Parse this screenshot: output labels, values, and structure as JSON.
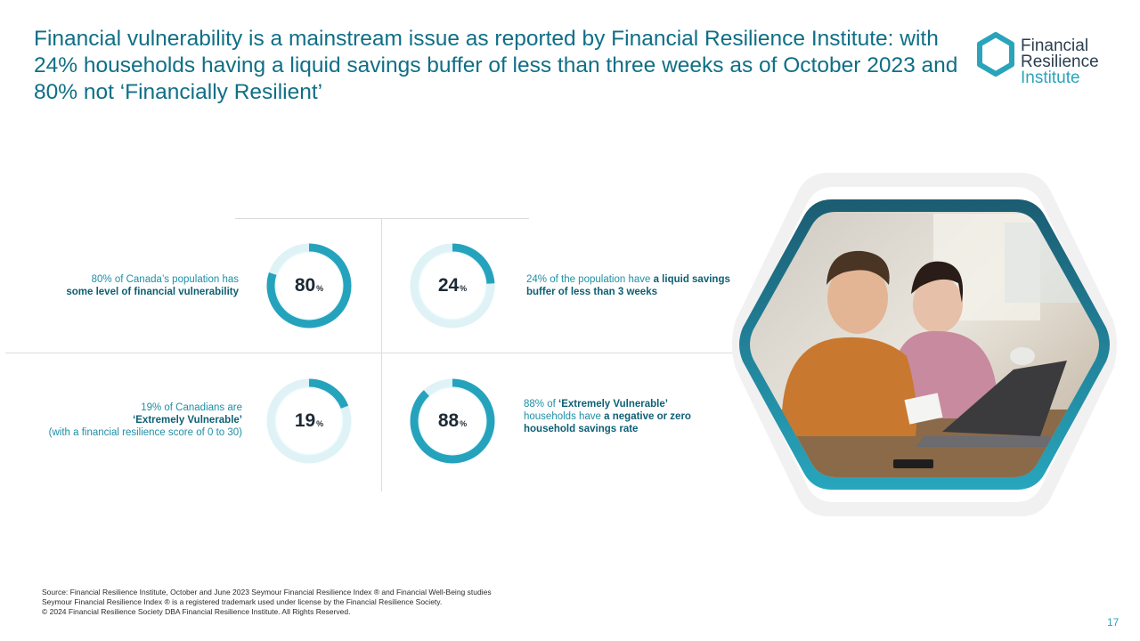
{
  "title": "Financial vulnerability is a mainstream issue as reported by Financial Resilience Institute: with 24% households having a liquid savings buffer of less than three weeks as of October 2023 and 80% not ‘Financially Resilient’",
  "logo": {
    "line1": "Financial",
    "line2": "Resilience",
    "line3": "Institute",
    "icon": "hexagon-ring-icon",
    "colors": {
      "ring": "#2aa4bb",
      "text_dark": "#2b3e4f",
      "text_accent": "#2aa4bb"
    }
  },
  "stats": [
    {
      "value": "80",
      "unit": "%",
      "fraction": 0.8,
      "desc_plain": "80% of Canada’s population has",
      "desc_bold": "some level of financial vulnerability"
    },
    {
      "value": "24",
      "unit": "%",
      "fraction": 0.24,
      "desc_plain": "24% of the population have",
      "desc_bold": "a liquid savings buffer of less than 3 weeks"
    },
    {
      "value": "19",
      "unit": "%",
      "fraction": 0.19,
      "desc_line1": "19% of Canadians are",
      "desc_bold": "‘Extremely Vulnerable’",
      "desc_line3": "(with a financial resilience score of 0 to 30)"
    },
    {
      "value": "88",
      "unit": "%",
      "fraction": 0.88,
      "desc_plain": "88% of",
      "desc_bold1": "‘Extremely Vulnerable’",
      "desc_mid": "households have",
      "desc_bold2": "a negative or zero household savings rate"
    }
  ],
  "photo": {
    "subject": "couple reviewing finances at laptop"
  },
  "footer": {
    "line1": "Source: Financial Resilience Institute, October and June 2023 Seymour Financial Resilience Index ® and Financial Well-Being studies",
    "line2": "Seymour Financial Resilience Index ® is a registered trademark used under license by the Financial Resilience Society.",
    "line3": "© 2024 Financial Resilience Society DBA Financial Resilience Institute. All Rights Reserved."
  },
  "page_number": "17",
  "colors": {
    "title": "#0f6f86",
    "accent": "#2aa4bb",
    "accent_dark": "#0e5f74",
    "ring_track": "#ffffff"
  }
}
